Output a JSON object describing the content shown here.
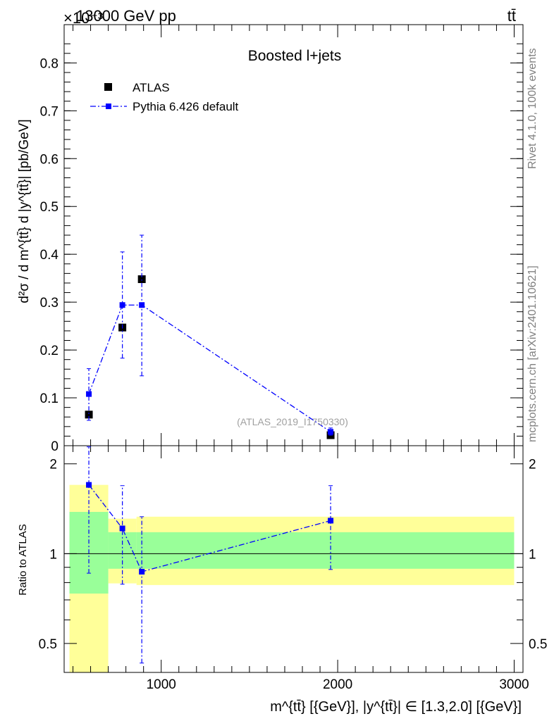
{
  "header": {
    "left": "13000 GeV pp",
    "right": "tt̄",
    "scale_prefix": "×10⁻³"
  },
  "side_labels": {
    "rivet": "Rivet 4.1.0,  100k events",
    "mcplots": "mcplots.cern.ch [arXiv:2401.10621]"
  },
  "chart_data": [
    {
      "type": "scatter",
      "title": "Boosted l+jets",
      "watermark": "(ATLAS_2019_I1750330)",
      "xlabel": "m^{tt̄} [{GeV}], |y^{tt̄}| ∈ [1.3,2.0] [{GeV}]",
      "ylabel": "d²σ / d m^{tt̄} d |y^{tt̄}| [pb/GeV]",
      "xlim": [
        450,
        3050
      ],
      "ylim": [
        0,
        0.88
      ],
      "y_scale_factor": "×10⁻³",
      "yticks": [
        0,
        0.1,
        0.2,
        0.3,
        0.4,
        0.5,
        0.6,
        0.7,
        0.8
      ],
      "ytick_labels": [
        "0",
        "0.1",
        "0.2",
        "0.3",
        "0.4",
        "0.5",
        "0.6",
        "0.7",
        "0.8"
      ],
      "legend": {
        "position": "top-left",
        "entries": [
          "ATLAS",
          "Pythia 6.426 default"
        ]
      },
      "series": [
        {
          "name": "ATLAS",
          "style": "marker-square",
          "color": "#000000",
          "x": [
            590,
            780,
            890,
            1960
          ],
          "y": [
            0.065,
            0.247,
            0.348,
            0.022
          ]
        },
        {
          "name": "Pythia 6.426 default",
          "style": "dash-dot-line-square",
          "color": "#0000ff",
          "x": [
            590,
            780,
            890,
            1960
          ],
          "y": [
            0.108,
            0.294,
            0.294,
            0.029
          ],
          "yerr_low": [
            0.053,
            0.183,
            0.146,
            0.022
          ],
          "yerr_high": [
            0.161,
            0.405,
            0.44,
            0.037
          ]
        }
      ]
    },
    {
      "type": "line",
      "ylabel": "Ratio to ATLAS",
      "xlim": [
        450,
        3050
      ],
      "ylim": [
        0.4,
        2.3
      ],
      "log_y": true,
      "yticks": [
        0.5,
        1,
        2
      ],
      "ytick_labels": [
        "0.5",
        "1",
        "2"
      ],
      "xticks": [
        1000,
        2000,
        3000
      ],
      "xtick_labels": [
        "1000",
        "2000",
        "3000"
      ],
      "bands": {
        "green": [
          {
            "x0": 480,
            "x1": 700,
            "low": 0.735,
            "high": 1.38
          },
          {
            "x0": 700,
            "x1": 860,
            "low": 0.89,
            "high": 1.18
          },
          {
            "x0": 860,
            "x1": 3000,
            "low": 0.89,
            "high": 1.18
          }
        ],
        "yellow": [
          {
            "x0": 480,
            "x1": 700,
            "low": 0.1,
            "high": 1.7
          },
          {
            "x0": 700,
            "x1": 860,
            "low": 0.795,
            "high": 1.31
          },
          {
            "x0": 860,
            "x1": 3000,
            "low": 0.785,
            "high": 1.33
          }
        ],
        "green_color": "#99ff99",
        "yellow_color": "#ffff99"
      },
      "series": [
        {
          "name": "Pythia 6.426 default",
          "color": "#0000ff",
          "x": [
            590,
            780,
            890,
            1960
          ],
          "y": [
            1.7,
            1.215,
            0.87,
            1.29
          ],
          "yerr_low": [
            0.86,
            0.79,
            0.43,
            0.885
          ],
          "yerr_high": [
            2.28,
            1.69,
            1.33,
            1.69
          ]
        }
      ]
    }
  ]
}
